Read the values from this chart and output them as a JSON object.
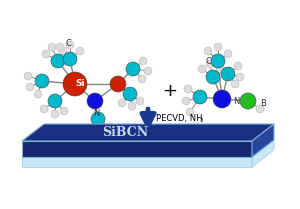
{
  "bg_color": "#ffffff",
  "arrow_color": "#1a3a8f",
  "box_top_color": "#1a3080",
  "box_front_color": "#162870",
  "box_side_color": "#2a45a0",
  "box_light_color": "#c8e8f8",
  "box_edge_color": "#7ab0d0",
  "box_text": "SiBCN",
  "box_text_color": "#c0d8f0",
  "arrow_label": "PECVD, NH",
  "arrow_sub": "3",
  "plus_sign": "+",
  "mol_color_teal": "#00b8cc",
  "mol_color_red": "#cc2200",
  "mol_color_blue": "#1010dd",
  "mol_color_grey": "#c0c0c0",
  "mol_color_green": "#22bb22",
  "mol_color_white": "#dddddd",
  "bond_color": "#888888",
  "label_color_dark": "#333333",
  "label_color_white": "#ffffff"
}
